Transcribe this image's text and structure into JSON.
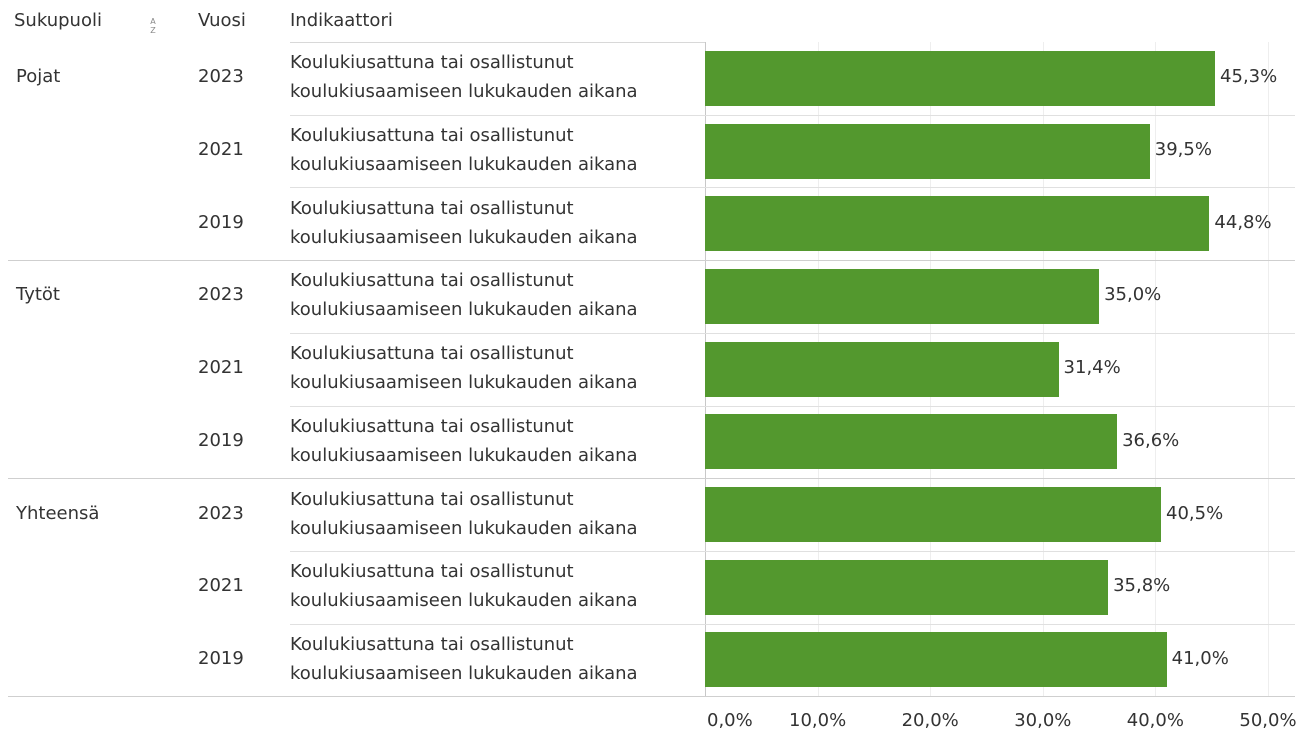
{
  "chart_data": {
    "type": "bar",
    "orientation": "horizontal",
    "row_headers": [
      "Sukupuoli",
      "Vuosi",
      "Indikaattori"
    ],
    "color": "#53982e",
    "grid": true,
    "xlim": [
      0,
      52.4
    ],
    "xticks": [
      {
        "value": 0,
        "label": "0,0%"
      },
      {
        "value": 10,
        "label": "10,0%"
      },
      {
        "value": 20,
        "label": "20,0%"
      },
      {
        "value": 30,
        "label": "30,0%"
      },
      {
        "value": 40,
        "label": "40,0%"
      },
      {
        "value": 50,
        "label": "50,0%"
      }
    ],
    "groups": [
      {
        "name": "Pojat",
        "years": [
          "2023",
          "2021",
          "2019"
        ],
        "indicators": [
          "Koulukiusattuna tai osallistunut koulukiusaamiseen lukukauden aikana",
          "Koulukiusattuna tai osallistunut koulukiusaamiseen lukukauden aikana",
          "Koulukiusattuna tai osallistunut koulukiusaamiseen lukukauden aikana"
        ],
        "values": [
          45.3,
          39.5,
          44.8
        ],
        "value_labels": [
          "45,3%",
          "39,5%",
          "44,8%"
        ]
      },
      {
        "name": "Tytöt",
        "years": [
          "2023",
          "2021",
          "2019"
        ],
        "indicators": [
          "Koulukiusattuna tai osallistunut koulukiusaamiseen lukukauden aikana",
          "Koulukiusattuna tai osallistunut koulukiusaamiseen lukukauden aikana",
          "Koulukiusattuna tai osallistunut koulukiusaamiseen lukukauden aikana"
        ],
        "values": [
          35.0,
          31.4,
          36.6
        ],
        "value_labels": [
          "35,0%",
          "31,4%",
          "36,6%"
        ]
      },
      {
        "name": "Yhteensä",
        "years": [
          "2023",
          "2021",
          "2019"
        ],
        "indicators": [
          "Koulukiusattuna tai osallistunut koulukiusaamiseen lukukauden aikana",
          "Koulukiusattuna tai osallistunut koulukiusaamiseen lukukauden aikana",
          "Koulukiusattuna tai osallistunut koulukiusaamiseen lukukauden aikana"
        ],
        "values": [
          40.5,
          35.8,
          41.0
        ],
        "value_labels": [
          "40,5%",
          "35,8%",
          "41,0%"
        ]
      }
    ]
  }
}
